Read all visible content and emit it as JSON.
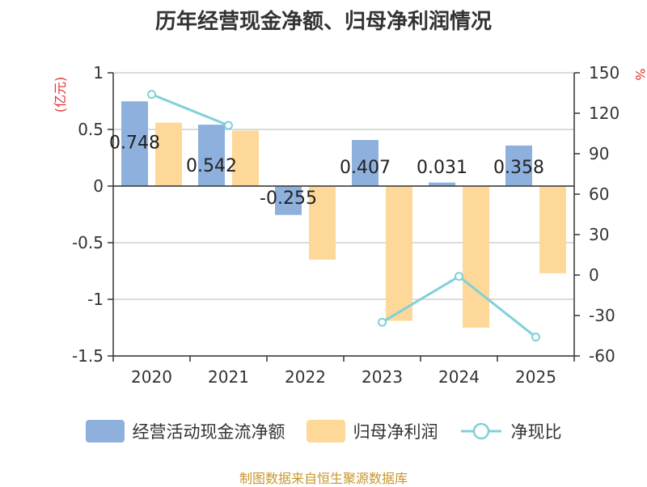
{
  "title": "历年经营现金净额、归母净利润情况",
  "source": "制图数据来自恒生聚源数据库",
  "colors": {
    "cashflow": "#8eb0dc",
    "profit": "#fdd898",
    "ratio": "#7fd1d9",
    "axis": "#333333",
    "grid": "#cfcfcf",
    "unit": "#e03030"
  },
  "legend": [
    {
      "key": "cashflow",
      "label": "经营活动现金流净额",
      "icon": "square-swatch"
    },
    {
      "key": "profit",
      "label": "归母净利润",
      "icon": "square-swatch"
    },
    {
      "key": "ratio",
      "label": "净现比",
      "icon": "line-circle-marker"
    }
  ],
  "chart_data": {
    "type": "bar",
    "categories": [
      "2020",
      "2021",
      "2022",
      "2023",
      "2024",
      "2025"
    ],
    "series": [
      {
        "name": "经营活动现金流净额",
        "key": "cashflow",
        "axis": "left",
        "values": [
          0.748,
          0.542,
          -0.255,
          0.407,
          0.031,
          0.358
        ],
        "labels": [
          "0.748",
          "0.542",
          "-0.255",
          "0.407",
          "0.031",
          "0.358"
        ]
      },
      {
        "name": "归母净利润",
        "key": "profit",
        "axis": "left",
        "values": [
          0.56,
          0.49,
          -0.65,
          -1.19,
          -1.25,
          -0.77
        ]
      },
      {
        "name": "净现比",
        "key": "ratio",
        "axis": "right",
        "type": "line",
        "values": [
          134,
          111,
          null,
          -35,
          -1,
          -46
        ]
      }
    ],
    "left_axis": {
      "label": "(亿元)",
      "min": -1.5,
      "max": 1,
      "ticks": [
        "1",
        "0.5",
        "0",
        "-0.5",
        "-1",
        "-1.5"
      ]
    },
    "right_axis": {
      "label": "%",
      "min": -60,
      "max": 150,
      "ticks": [
        "150",
        "120",
        "90",
        "60",
        "30",
        "0",
        "-30",
        "-60"
      ]
    },
    "grid": true,
    "legend_position": "bottom"
  }
}
